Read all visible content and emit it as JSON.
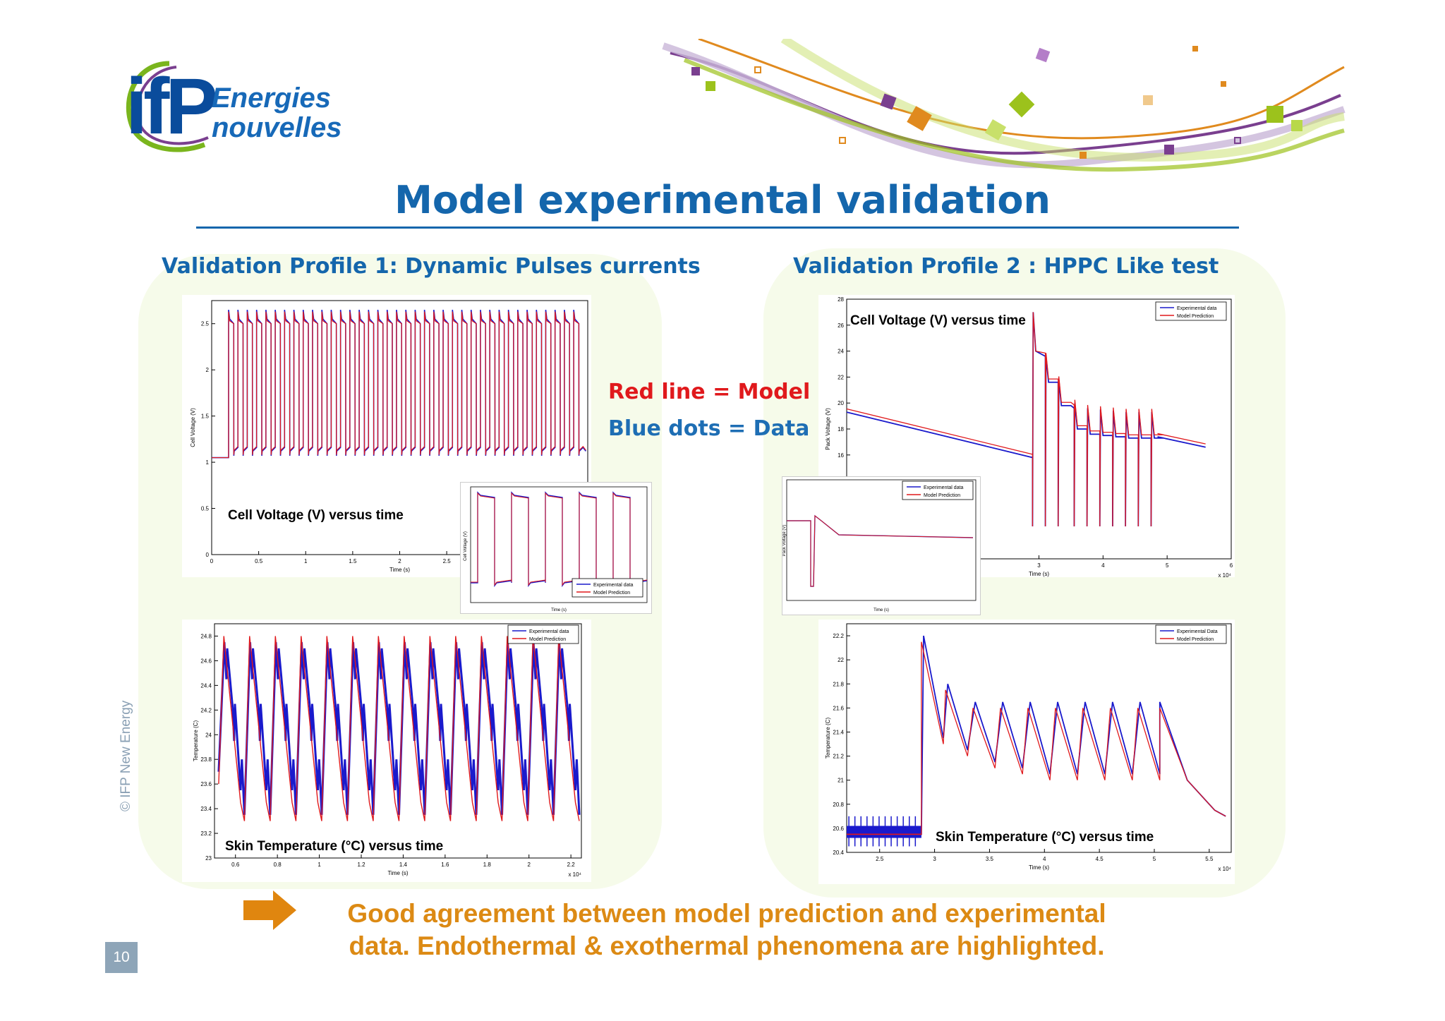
{
  "logo": {
    "mark": "ifP",
    "line1": "Energies",
    "line2": "nouvelles"
  },
  "title": "Model experimental validation",
  "left_heading": "Validation Profile 1: Dynamic Pulses currents",
  "right_heading": "Validation Profile 2 : HPPC Like test",
  "legend": {
    "model": "Red line = Model",
    "data": "Blue dots = Data"
  },
  "colors": {
    "title_blue": "#1466ac",
    "model_red": "#e0191c",
    "data_blue": "#1a1acc",
    "conclusion_orange": "#dc8a14",
    "panel_green": "#f6fbea"
  },
  "conclusion": {
    "line1": "Good agreement between model prediction and experimental",
    "line2": "data. Endothermal & exothermal phenomena are highlighted."
  },
  "copyright": "© IFP New Energy",
  "page_number": "10",
  "chart_data": [
    {
      "type": "line",
      "caption": "Cell Voltage (V) versus time",
      "xlabel": "Time (s)",
      "ylabel": "Cell Voltage (V)",
      "xlim": [
        0,
        4
      ],
      "ylim": [
        0,
        2.75
      ],
      "xticks": [
        "0",
        "0.5",
        "1",
        "1.5",
        "2",
        "2.5"
      ],
      "yticks": [
        "0",
        "0.5",
        "1",
        "1.5",
        "2",
        "2.5"
      ],
      "pulse_count": 38,
      "pulse_high": 2.55,
      "pulse_low": 1.12,
      "rest_level": 1.05,
      "series": [
        {
          "name": "Experimental data"
        },
        {
          "name": "Model Prediction"
        }
      ]
    },
    {
      "type": "line",
      "caption": "",
      "xlabel": "Time (s)",
      "ylabel": "Cell Voltage (V)",
      "legend": [
        "Experimental data",
        "Model Prediction"
      ]
    },
    {
      "type": "line",
      "caption": "Skin Temperature (°C) versus time",
      "xlabel": "Time (s)",
      "ylabel": "Temperature (C)",
      "x_multiplier": "x 10⁴",
      "xlim": [
        0.5,
        2.25
      ],
      "ylim": [
        23,
        24.9
      ],
      "xticks": [
        "0.6",
        "0.8",
        "1",
        "1.2",
        "1.4",
        "1.6",
        "1.8",
        "2",
        "2.2"
      ],
      "yticks": [
        "23",
        "23.2",
        "23.4",
        "23.6",
        "23.8",
        "24",
        "24.2",
        "24.4",
        "24.6",
        "24.8"
      ],
      "cycles": 14,
      "peak": 24.8,
      "trough": 23.3,
      "series": [
        {
          "name": "Experimental data"
        },
        {
          "name": "Model Prediction"
        }
      ]
    },
    {
      "type": "line",
      "caption": "Cell Voltage (V) versus time",
      "xlabel": "Time (s)",
      "ylabel": "Pack Voltage (V)",
      "x_multiplier": "x 10⁴",
      "xlim": [
        0,
        6
      ],
      "ylim": [
        8,
        28
      ],
      "xticks": [
        "3",
        "4",
        "5",
        "6"
      ],
      "yticks": [
        "16",
        "18",
        "20",
        "22",
        "24",
        "26",
        "28"
      ],
      "series": [
        {
          "name": "Experimental data"
        },
        {
          "name": "Model Prediction"
        }
      ]
    },
    {
      "type": "line",
      "caption": "",
      "xlabel": "Time (s)",
      "ylabel": "Pack Voltage (V)",
      "legend": [
        "Experimental data",
        "Model Prediction"
      ]
    },
    {
      "type": "line",
      "caption": "Skin Temperature (°C) versus time",
      "xlabel": "Time (s)",
      "ylabel": "Temperature (C)",
      "x_multiplier": "x 10⁴",
      "xlim": [
        2.2,
        5.7
      ],
      "ylim": [
        20.4,
        22.3
      ],
      "xticks": [
        "2.5",
        "3",
        "3.5",
        "4",
        "4.5",
        "5",
        "5.5"
      ],
      "yticks": [
        "20.4",
        "20.6",
        "20.8",
        "21",
        "21.2",
        "21.4",
        "21.6",
        "21.8",
        "22",
        "22.2"
      ],
      "series": [
        {
          "name": "Experimental Data"
        },
        {
          "name": "Model Prediction"
        }
      ]
    }
  ]
}
